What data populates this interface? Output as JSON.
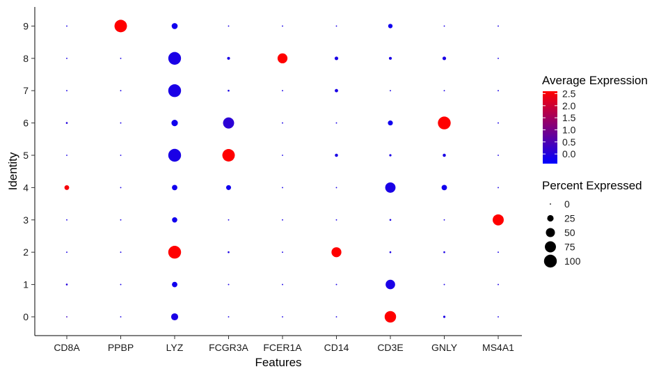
{
  "chart_data": {
    "type": "dot-plot",
    "xlabel": "Features",
    "ylabel": "Identity",
    "features": [
      "CD8A",
      "PPBP",
      "LYZ",
      "FCGR3A",
      "FCER1A",
      "CD14",
      "CD3E",
      "GNLY",
      "MS4A1"
    ],
    "identities": [
      "0",
      "1",
      "2",
      "3",
      "4",
      "5",
      "6",
      "7",
      "8",
      "9"
    ],
    "color_scale": {
      "title": "Average Expression",
      "low_color": "#0000ff",
      "high_color": "#ff0000",
      "min": -0.4,
      "max": 2.6,
      "ticks": [
        "0.0",
        "0.5",
        "1.0",
        "1.5",
        "2.0",
        "2.5"
      ],
      "tick_values": [
        0.0,
        0.5,
        1.0,
        1.5,
        2.0,
        2.5
      ]
    },
    "size_scale": {
      "title": "Percent Expressed",
      "ticks": [
        "0",
        "25",
        "50",
        "75",
        "100"
      ],
      "tick_values": [
        0,
        25,
        50,
        75,
        100
      ]
    },
    "grid": false,
    "legend_position": "right",
    "points": [
      {
        "feature": "CD8A",
        "identity": "0",
        "pct": 1,
        "avg": 0.3
      },
      {
        "feature": "CD8A",
        "identity": "1",
        "pct": 2,
        "avg": 0.0
      },
      {
        "feature": "CD8A",
        "identity": "2",
        "pct": 1,
        "avg": -0.1
      },
      {
        "feature": "CD8A",
        "identity": "3",
        "pct": 1,
        "avg": -0.1
      },
      {
        "feature": "CD8A",
        "identity": "4",
        "pct": 14,
        "avg": 2.5
      },
      {
        "feature": "CD8A",
        "identity": "5",
        "pct": 1,
        "avg": -0.1
      },
      {
        "feature": "CD8A",
        "identity": "6",
        "pct": 2,
        "avg": 0.0
      },
      {
        "feature": "CD8A",
        "identity": "7",
        "pct": 1,
        "avg": -0.1
      },
      {
        "feature": "CD8A",
        "identity": "8",
        "pct": 1,
        "avg": -0.1
      },
      {
        "feature": "CD8A",
        "identity": "9",
        "pct": 1,
        "avg": -0.1
      },
      {
        "feature": "PPBP",
        "identity": "0",
        "pct": 1,
        "avg": -0.1
      },
      {
        "feature": "PPBP",
        "identity": "1",
        "pct": 1,
        "avg": -0.1
      },
      {
        "feature": "PPBP",
        "identity": "2",
        "pct": 1,
        "avg": -0.1
      },
      {
        "feature": "PPBP",
        "identity": "3",
        "pct": 1,
        "avg": -0.1
      },
      {
        "feature": "PPBP",
        "identity": "4",
        "pct": 1,
        "avg": -0.1
      },
      {
        "feature": "PPBP",
        "identity": "5",
        "pct": 1,
        "avg": -0.1
      },
      {
        "feature": "PPBP",
        "identity": "6",
        "pct": 1,
        "avg": -0.1
      },
      {
        "feature": "PPBP",
        "identity": "7",
        "pct": 1,
        "avg": -0.1
      },
      {
        "feature": "PPBP",
        "identity": "8",
        "pct": 1,
        "avg": -0.1
      },
      {
        "feature": "PPBP",
        "identity": "9",
        "pct": 95,
        "avg": 2.6
      },
      {
        "feature": "LYZ",
        "identity": "0",
        "pct": 30,
        "avg": -0.1
      },
      {
        "feature": "LYZ",
        "identity": "1",
        "pct": 18,
        "avg": -0.2
      },
      {
        "feature": "LYZ",
        "identity": "2",
        "pct": 100,
        "avg": 2.6
      },
      {
        "feature": "LYZ",
        "identity": "3",
        "pct": 17,
        "avg": -0.2
      },
      {
        "feature": "LYZ",
        "identity": "4",
        "pct": 18,
        "avg": -0.2
      },
      {
        "feature": "LYZ",
        "identity": "5",
        "pct": 100,
        "avg": -0.1
      },
      {
        "feature": "LYZ",
        "identity": "6",
        "pct": 25,
        "avg": -0.2
      },
      {
        "feature": "LYZ",
        "identity": "7",
        "pct": 100,
        "avg": -0.1
      },
      {
        "feature": "LYZ",
        "identity": "8",
        "pct": 99,
        "avg": -0.1
      },
      {
        "feature": "LYZ",
        "identity": "9",
        "pct": 22,
        "avg": -0.2
      },
      {
        "feature": "FCGR3A",
        "identity": "0",
        "pct": 1,
        "avg": -0.1
      },
      {
        "feature": "FCGR3A",
        "identity": "1",
        "pct": 1,
        "avg": -0.1
      },
      {
        "feature": "FCGR3A",
        "identity": "2",
        "pct": 2,
        "avg": -0.1
      },
      {
        "feature": "FCGR3A",
        "identity": "3",
        "pct": 1,
        "avg": -0.1
      },
      {
        "feature": "FCGR3A",
        "identity": "4",
        "pct": 15,
        "avg": -0.2
      },
      {
        "feature": "FCGR3A",
        "identity": "5",
        "pct": 95,
        "avg": 2.6
      },
      {
        "feature": "FCGR3A",
        "identity": "6",
        "pct": 75,
        "avg": 0.1
      },
      {
        "feature": "FCGR3A",
        "identity": "7",
        "pct": 2,
        "avg": -0.1
      },
      {
        "feature": "FCGR3A",
        "identity": "8",
        "pct": 5,
        "avg": -0.1
      },
      {
        "feature": "FCGR3A",
        "identity": "9",
        "pct": 1,
        "avg": -0.1
      },
      {
        "feature": "FCER1A",
        "identity": "0",
        "pct": 1,
        "avg": -0.1
      },
      {
        "feature": "FCER1A",
        "identity": "1",
        "pct": 1,
        "avg": -0.1
      },
      {
        "feature": "FCER1A",
        "identity": "2",
        "pct": 1,
        "avg": -0.1
      },
      {
        "feature": "FCER1A",
        "identity": "3",
        "pct": 1,
        "avg": -0.1
      },
      {
        "feature": "FCER1A",
        "identity": "4",
        "pct": 1,
        "avg": -0.1
      },
      {
        "feature": "FCER1A",
        "identity": "5",
        "pct": 1,
        "avg": -0.1
      },
      {
        "feature": "FCER1A",
        "identity": "6",
        "pct": 1,
        "avg": -0.1
      },
      {
        "feature": "FCER1A",
        "identity": "7",
        "pct": 1,
        "avg": -0.1
      },
      {
        "feature": "FCER1A",
        "identity": "8",
        "pct": 60,
        "avg": 2.6
      },
      {
        "feature": "FCER1A",
        "identity": "9",
        "pct": 1,
        "avg": -0.1
      },
      {
        "feature": "CD14",
        "identity": "0",
        "pct": 1,
        "avg": -0.1
      },
      {
        "feature": "CD14",
        "identity": "1",
        "pct": 1,
        "avg": -0.1
      },
      {
        "feature": "CD14",
        "identity": "2",
        "pct": 60,
        "avg": 2.6
      },
      {
        "feature": "CD14",
        "identity": "3",
        "pct": 1,
        "avg": -0.1
      },
      {
        "feature": "CD14",
        "identity": "4",
        "pct": 1,
        "avg": -0.1
      },
      {
        "feature": "CD14",
        "identity": "5",
        "pct": 6,
        "avg": -0.1
      },
      {
        "feature": "CD14",
        "identity": "6",
        "pct": 1,
        "avg": -0.1
      },
      {
        "feature": "CD14",
        "identity": "7",
        "pct": 7,
        "avg": -0.1
      },
      {
        "feature": "CD14",
        "identity": "8",
        "pct": 8,
        "avg": -0.1
      },
      {
        "feature": "CD14",
        "identity": "9",
        "pct": 1,
        "avg": -0.1
      },
      {
        "feature": "CD3E",
        "identity": "0",
        "pct": 80,
        "avg": 2.6
      },
      {
        "feature": "CD3E",
        "identity": "1",
        "pct": 55,
        "avg": -0.1
      },
      {
        "feature": "CD3E",
        "identity": "2",
        "pct": 2,
        "avg": -0.1
      },
      {
        "feature": "CD3E",
        "identity": "3",
        "pct": 2,
        "avg": -0.1
      },
      {
        "feature": "CD3E",
        "identity": "4",
        "pct": 65,
        "avg": -0.1
      },
      {
        "feature": "CD3E",
        "identity": "5",
        "pct": 3,
        "avg": -0.1
      },
      {
        "feature": "CD3E",
        "identity": "6",
        "pct": 15,
        "avg": -0.2
      },
      {
        "feature": "CD3E",
        "identity": "7",
        "pct": 1,
        "avg": -0.1
      },
      {
        "feature": "CD3E",
        "identity": "8",
        "pct": 5,
        "avg": -0.1
      },
      {
        "feature": "CD3E",
        "identity": "9",
        "pct": 12,
        "avg": -0.2
      },
      {
        "feature": "GNLY",
        "identity": "0",
        "pct": 3,
        "avg": -0.1
      },
      {
        "feature": "GNLY",
        "identity": "1",
        "pct": 1,
        "avg": -0.1
      },
      {
        "feature": "GNLY",
        "identity": "2",
        "pct": 2,
        "avg": -0.1
      },
      {
        "feature": "GNLY",
        "identity": "3",
        "pct": 1,
        "avg": -0.1
      },
      {
        "feature": "GNLY",
        "identity": "4",
        "pct": 18,
        "avg": -0.2
      },
      {
        "feature": "GNLY",
        "identity": "5",
        "pct": 6,
        "avg": -0.1
      },
      {
        "feature": "GNLY",
        "identity": "6",
        "pct": 100,
        "avg": 2.6
      },
      {
        "feature": "GNLY",
        "identity": "7",
        "pct": 1,
        "avg": -0.1
      },
      {
        "feature": "GNLY",
        "identity": "8",
        "pct": 8,
        "avg": -0.1
      },
      {
        "feature": "GNLY",
        "identity": "9",
        "pct": 1,
        "avg": -0.1
      },
      {
        "feature": "MS4A1",
        "identity": "0",
        "pct": 1,
        "avg": -0.1
      },
      {
        "feature": "MS4A1",
        "identity": "1",
        "pct": 1,
        "avg": -0.1
      },
      {
        "feature": "MS4A1",
        "identity": "2",
        "pct": 1,
        "avg": -0.1
      },
      {
        "feature": "MS4A1",
        "identity": "3",
        "pct": 75,
        "avg": 2.6
      },
      {
        "feature": "MS4A1",
        "identity": "4",
        "pct": 1,
        "avg": -0.1
      },
      {
        "feature": "MS4A1",
        "identity": "5",
        "pct": 1,
        "avg": -0.1
      },
      {
        "feature": "MS4A1",
        "identity": "6",
        "pct": 1,
        "avg": -0.1
      },
      {
        "feature": "MS4A1",
        "identity": "7",
        "pct": 1,
        "avg": -0.1
      },
      {
        "feature": "MS4A1",
        "identity": "8",
        "pct": 1,
        "avg": -0.1
      },
      {
        "feature": "MS4A1",
        "identity": "9",
        "pct": 1,
        "avg": -0.1
      }
    ]
  }
}
